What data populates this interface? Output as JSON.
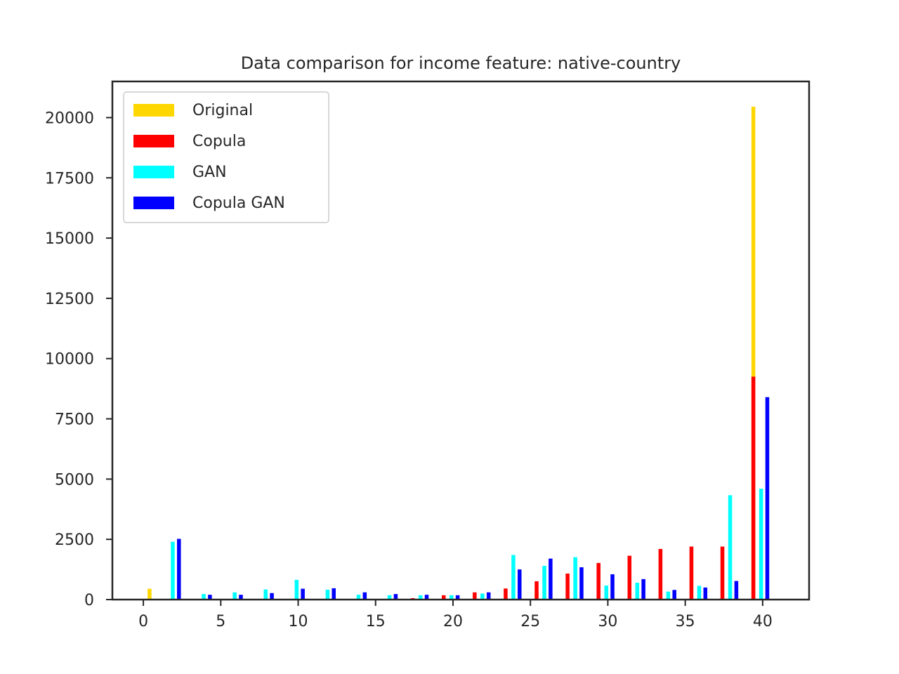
{
  "chart_data": {
    "type": "bar",
    "title": "Data comparison for income feature: native-country",
    "xlabel": "",
    "ylabel": "",
    "xlim": [
      -2,
      43
    ],
    "ylim": [
      0,
      21500
    ],
    "x_ticks": [
      "0",
      "5",
      "10",
      "15",
      "20",
      "25",
      "30",
      "35",
      "40"
    ],
    "y_ticks": [
      "0",
      "2500",
      "5000",
      "7500",
      "10000",
      "12500",
      "15000",
      "17500",
      "20000"
    ],
    "legend_position": "top-left",
    "series": [
      {
        "name": "Original",
        "color": "#FFD700",
        "points": [
          [
            0.4,
            450
          ],
          [
            10.4,
            20
          ],
          [
            25.4,
            380
          ],
          [
            29.4,
            80
          ],
          [
            39.4,
            20450
          ]
        ]
      },
      {
        "name": "Copula",
        "color": "#FF0000",
        "points": [
          [
            17.4,
            60
          ],
          [
            19.4,
            180
          ],
          [
            21.4,
            300
          ],
          [
            23.4,
            460
          ],
          [
            25.4,
            760
          ],
          [
            27.4,
            1080
          ],
          [
            29.4,
            1520
          ],
          [
            31.4,
            1820
          ],
          [
            33.4,
            2100
          ],
          [
            35.4,
            2200
          ],
          [
            37.4,
            2200
          ],
          [
            39.4,
            9250
          ]
        ]
      },
      {
        "name": "GAN",
        "color": "#00FFFF",
        "points": [
          [
            1.4,
            2400
          ],
          [
            3.4,
            230
          ],
          [
            5.4,
            300
          ],
          [
            7.4,
            420
          ],
          [
            9.4,
            820
          ],
          [
            11.4,
            410
          ],
          [
            13.4,
            200
          ],
          [
            15.4,
            180
          ],
          [
            17.4,
            180
          ],
          [
            19.4,
            180
          ],
          [
            21.4,
            250
          ],
          [
            23.4,
            1850
          ],
          [
            25.4,
            1400
          ],
          [
            27.4,
            1760
          ],
          [
            29.4,
            580
          ],
          [
            31.4,
            700
          ],
          [
            33.4,
            330
          ],
          [
            35.4,
            570
          ],
          [
            37.4,
            4330
          ],
          [
            39.4,
            4600
          ]
        ]
      },
      {
        "name": "Copula GAN",
        "color": "#0000FF",
        "points": [
          [
            1.4,
            2520
          ],
          [
            3.4,
            200
          ],
          [
            5.4,
            200
          ],
          [
            7.4,
            270
          ],
          [
            9.4,
            450
          ],
          [
            11.4,
            470
          ],
          [
            13.4,
            300
          ],
          [
            15.4,
            230
          ],
          [
            17.4,
            200
          ],
          [
            19.4,
            180
          ],
          [
            21.4,
            300
          ],
          [
            23.4,
            1250
          ],
          [
            25.4,
            1700
          ],
          [
            27.4,
            1340
          ],
          [
            29.4,
            1050
          ],
          [
            31.4,
            850
          ],
          [
            33.4,
            400
          ],
          [
            35.4,
            500
          ],
          [
            37.4,
            770
          ],
          [
            39.4,
            8400
          ]
        ]
      }
    ]
  }
}
